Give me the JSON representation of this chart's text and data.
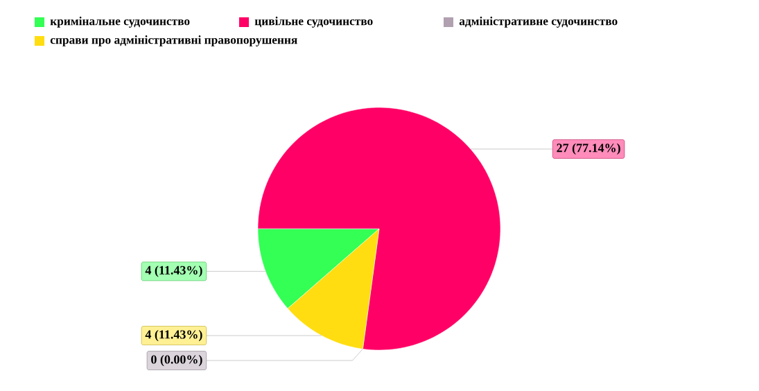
{
  "chart_data": {
    "type": "pie",
    "categories": [
      "кримінальне судочинство",
      "цивільне судочинство",
      "адміністративне судочинство",
      "справи про адміністративні правопорушення"
    ],
    "values": [
      4,
      27,
      0,
      4
    ],
    "colors": [
      "#33ff55",
      "#ff0066",
      "#b0a0b0",
      "#ffdd11"
    ],
    "value_labels": [
      "4 (11.43%)",
      "27 (77.14%)",
      "0 (0.00%)",
      "4 (11.43%)"
    ],
    "legend": "top left"
  }
}
